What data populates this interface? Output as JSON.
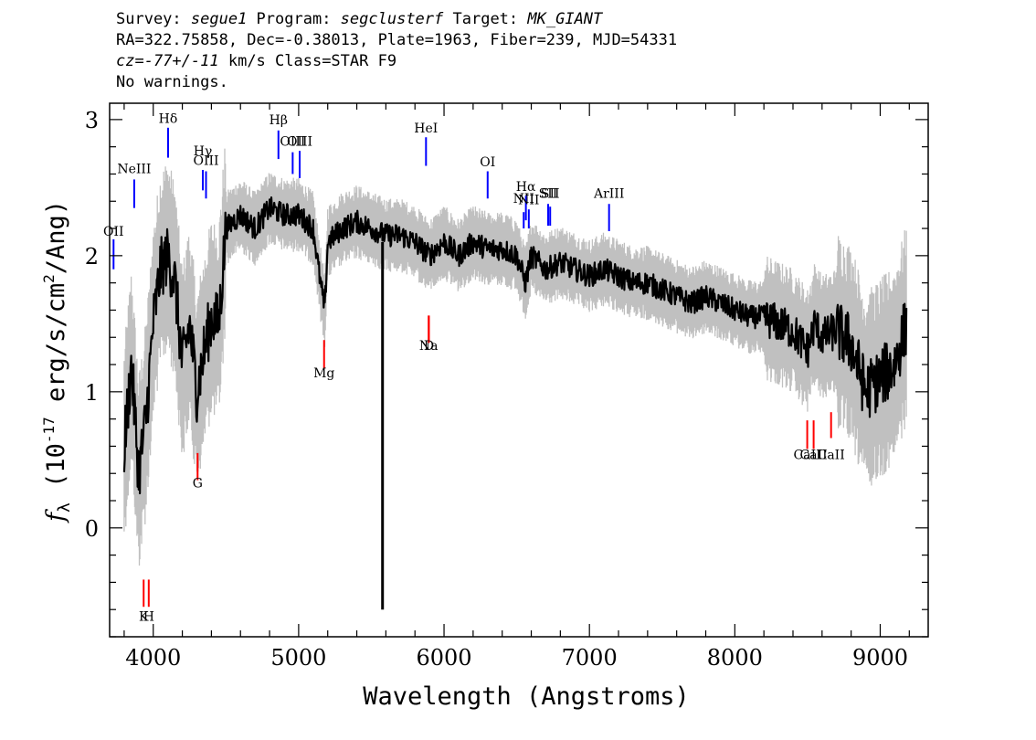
{
  "header": {
    "survey_label": "Survey: ",
    "survey": "segue1",
    "program_label": " Program: ",
    "program": "segclusterf",
    "target_label": " Target: ",
    "target": "MK_GIANT",
    "line2": "RA=322.75858, Dec=-0.38013, Plate=1963, Fiber=239, MJD=54331",
    "cz_label": "cz",
    "cz_value": "=-77+/-11",
    "line3_rest": " km/s Class=STAR F9",
    "line4": "No warnings."
  },
  "colors": {
    "flux": "#000000",
    "error": "#c0c0c0",
    "emission": "#0000ff",
    "absorption": "#ff0000"
  },
  "chart_data": {
    "type": "line",
    "xlabel": "Wavelength (Angstroms)",
    "ylabel": "f_λ (10^-17 erg/s/cm^2/Ang)",
    "ylabel_parts": {
      "f": "f",
      "lambda": "λ",
      "pre": " (10",
      "exp1": "-17",
      "mid": " erg/s/cm",
      "exp2": "2",
      "post": "/Ang)"
    },
    "xlim": [
      3700,
      9330
    ],
    "ylim": [
      -0.8,
      3.12
    ],
    "xticks": [
      4000,
      5000,
      6000,
      7000,
      8000,
      9000
    ],
    "yticks": [
      0,
      1,
      2,
      3
    ],
    "grid": false,
    "series": [
      {
        "style": "thick black",
        "x": [
          3800,
          3850,
          3900,
          3950,
          4000,
          4050,
          4100,
          4150,
          4200,
          4250,
          4300,
          4350,
          4400,
          4450,
          4500,
          4600,
          4700,
          4800,
          4900,
          5000,
          5100,
          5150,
          5180,
          5200,
          5300,
          5400,
          5500,
          5600,
          5700,
          5800,
          5900,
          6000,
          6100,
          6200,
          6300,
          6400,
          6500,
          6560,
          6600,
          6700,
          6800,
          6900,
          7000,
          7100,
          7200,
          7300,
          7400,
          7500,
          7600,
          7700,
          7800,
          7900,
          8000,
          8100,
          8200,
          8300,
          8400,
          8500,
          8550,
          8600,
          8700,
          8800,
          8900,
          9000,
          9100,
          9180
        ],
        "y": [
          0.6,
          1.2,
          0.4,
          0.8,
          1.5,
          1.9,
          2.0,
          1.8,
          1.2,
          1.5,
          1.0,
          1.3,
          1.55,
          1.5,
          2.2,
          2.3,
          2.2,
          2.35,
          2.3,
          2.3,
          2.2,
          1.8,
          1.6,
          2.1,
          2.2,
          2.25,
          2.2,
          2.15,
          2.15,
          2.1,
          2.0,
          2.1,
          2.0,
          2.1,
          2.05,
          2.05,
          2.0,
          1.8,
          2.0,
          1.9,
          1.95,
          1.9,
          1.85,
          1.9,
          1.85,
          1.8,
          1.8,
          1.75,
          1.7,
          1.65,
          1.7,
          1.65,
          1.6,
          1.55,
          1.55,
          1.5,
          1.45,
          1.3,
          1.5,
          1.4,
          1.45,
          1.35,
          1.0,
          1.1,
          1.2,
          1.5
        ]
      },
      {
        "style": "thin black spike",
        "x": [
          5577,
          5577
        ],
        "y": [
          2.1,
          -0.6
        ]
      }
    ],
    "emission_lines": [
      {
        "label": "OII",
        "x": 3727,
        "y_bottom": 1.9,
        "y_top": 2.12,
        "label_y": 2.12
      },
      {
        "label": "NeIII",
        "x": 3869,
        "y_bottom": 2.35,
        "y_top": 2.56,
        "label_y": 2.58
      },
      {
        "label": "Hδ",
        "x": 4102,
        "y_bottom": 2.72,
        "y_top": 2.94,
        "label_y": 2.95
      },
      {
        "label": "Hγ",
        "x": 4341,
        "y_bottom": 2.48,
        "y_top": 2.63,
        "label_y": 2.71
      },
      {
        "label": "OIII",
        "x": 4363,
        "y_bottom": 2.42,
        "y_top": 2.62,
        "label_y": 2.64
      },
      {
        "label": "Hβ",
        "x": 4861,
        "y_bottom": 2.71,
        "y_top": 2.92,
        "label_y": 2.94
      },
      {
        "label": "OIII",
        "x": 4959,
        "y_bottom": 2.6,
        "y_top": 2.76,
        "label_y": 2.78
      },
      {
        "label": "OIII",
        "x": 5007,
        "y_bottom": 2.57,
        "y_top": 2.77,
        "label_y": 2.78
      },
      {
        "label": "HeI",
        "x": 5876,
        "y_bottom": 2.66,
        "y_top": 2.87,
        "label_y": 2.88
      },
      {
        "label": "OI",
        "x": 6300,
        "y_bottom": 2.42,
        "y_top": 2.62,
        "label_y": 2.63
      },
      {
        "label": "NII",
        "x": 6548,
        "y_bottom": 2.2,
        "y_top": 2.32,
        "label_y": 2.36
      },
      {
        "label": "Hα",
        "x": 6563,
        "y_bottom": 2.26,
        "y_top": 2.44,
        "label_y": 2.45
      },
      {
        "label": "NII",
        "x": 6583,
        "y_bottom": 2.2,
        "y_top": 2.34,
        "label_y": 2.35
      },
      {
        "label": "SII",
        "x": 6716,
        "y_bottom": 2.22,
        "y_top": 2.38,
        "label_y": 2.4
      },
      {
        "label": "SII",
        "x": 6730,
        "y_bottom": 2.22,
        "y_top": 2.36,
        "label_y": 2.4
      },
      {
        "label": "ArIII",
        "x": 7135,
        "y_bottom": 2.18,
        "y_top": 2.38,
        "label_y": 2.4
      }
    ],
    "absorption_lines": [
      {
        "label": "K",
        "x": 3934,
        "y_bottom": -0.58,
        "y_top": -0.38,
        "label_y": -0.71
      },
      {
        "label": "H",
        "x": 3969,
        "y_bottom": -0.58,
        "y_top": -0.38,
        "label_y": -0.71
      },
      {
        "label": "G",
        "x": 4305,
        "y_bottom": 0.35,
        "y_top": 0.55,
        "label_y": 0.27
      },
      {
        "label": "Mg",
        "x": 5175,
        "y_bottom": 1.17,
        "y_top": 1.38,
        "label_y": 1.08
      },
      {
        "label": "Na",
        "x": 5894,
        "y_bottom": 1.36,
        "y_top": 1.56,
        "label_y": 1.28
      },
      {
        "label": "D",
        "x": 5896,
        "y_bottom": 1.36,
        "y_top": 1.56,
        "label_y": 1.28
      },
      {
        "label": "CaII",
        "x": 8498,
        "y_bottom": 0.58,
        "y_top": 0.79,
        "label_y": 0.48
      },
      {
        "label": "CaII",
        "x": 8542,
        "y_bottom": 0.58,
        "y_top": 0.79,
        "label_y": 0.48
      },
      {
        "label": "CaII",
        "x": 8662,
        "y_bottom": 0.66,
        "y_top": 0.85,
        "label_y": 0.48
      }
    ]
  }
}
